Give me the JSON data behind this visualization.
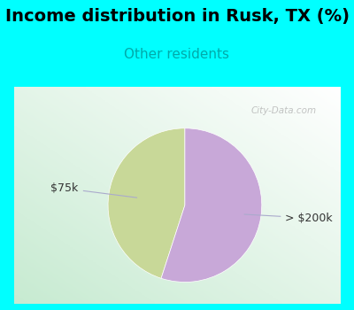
{
  "title": "Income distribution in Rusk, TX (%)",
  "subtitle": "Other residents",
  "title_color": "#000000",
  "subtitle_color": "#00AAAA",
  "bg_color_top": "#00FFFF",
  "slices": [
    {
      "label": "$75k",
      "value": 45,
      "color": "#C8D898"
    },
    {
      "label": "> $200k",
      "value": 55,
      "color": "#C8A8D8"
    }
  ],
  "watermark": "City-Data.com",
  "startangle": 90,
  "label_fontsize": 9,
  "title_fontsize": 14,
  "subtitle_fontsize": 11,
  "label_color": "#333333",
  "line_color": "#AAAACC"
}
